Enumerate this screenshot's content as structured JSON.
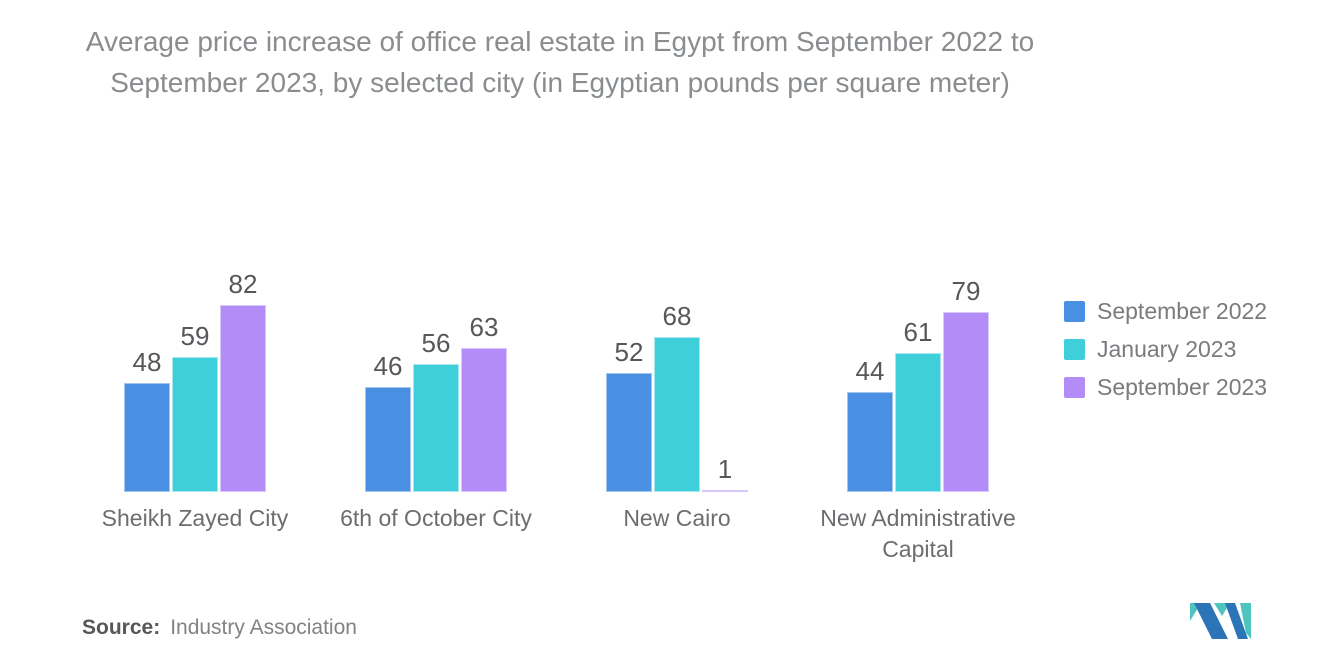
{
  "title": "Average price increase of office real estate in Egypt from September 2022 to September 2023, by selected city (in Egyptian pounds per square meter)",
  "chart_data": {
    "type": "bar",
    "categories": [
      "Sheikh Zayed City",
      "6th of October City",
      "New Cairo",
      "New Administrative Capital"
    ],
    "series": [
      {
        "name": "September 2022",
        "color": "#4a90e2",
        "border": "#a3c6f0",
        "values": [
          48,
          46,
          52,
          44
        ]
      },
      {
        "name": "January 2023",
        "color": "#3fcfdb",
        "border": "#a6e9ef",
        "values": [
          59,
          56,
          68,
          61
        ]
      },
      {
        "name": "September 2023",
        "color": "#b38cf7",
        "border": "#d8c7fb",
        "values": [
          82,
          63,
          1,
          79
        ]
      }
    ],
    "ylim": [
      0,
      82
    ],
    "value_labels": true,
    "grid": false,
    "legend_position": "right",
    "xlabel": "",
    "ylabel": ""
  },
  "source": {
    "label": "Source:",
    "text": "Industry Association"
  },
  "logo": {
    "name": "mordor-intelligence-logo",
    "blue": "#2b74b8",
    "teal": "#4ec4be"
  }
}
